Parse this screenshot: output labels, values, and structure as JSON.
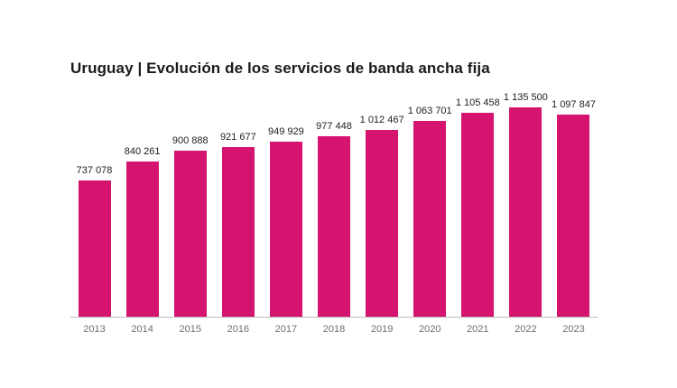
{
  "chart_data": {
    "type": "bar",
    "title": "Uruguay | Evolución de los servicios de banda ancha fija",
    "xlabel": "",
    "ylabel": "",
    "categories": [
      "2013",
      "2014",
      "2015",
      "2016",
      "2017",
      "2018",
      "2019",
      "2020",
      "2021",
      "2022",
      "2023"
    ],
    "values": [
      737078,
      840261,
      900888,
      921677,
      949929,
      977448,
      1012467,
      1063701,
      1105458,
      1135500,
      1097847
    ],
    "value_labels": [
      "737 078",
      "840 261",
      "900 888",
      "921 677",
      "949 929",
      "977 448",
      "1 012 467",
      "1 063 701",
      "1 105 458",
      "1 135 500",
      "1 097 847"
    ],
    "bar_color": "#d4146e",
    "background_color": "#ffffff",
    "axis_line_color": "#bdbdbd",
    "value_label_color": "#212121",
    "tick_label_color": "#6e6e6e",
    "legend": "none",
    "grid": false,
    "ylim": [
      0,
      1135500
    ]
  }
}
